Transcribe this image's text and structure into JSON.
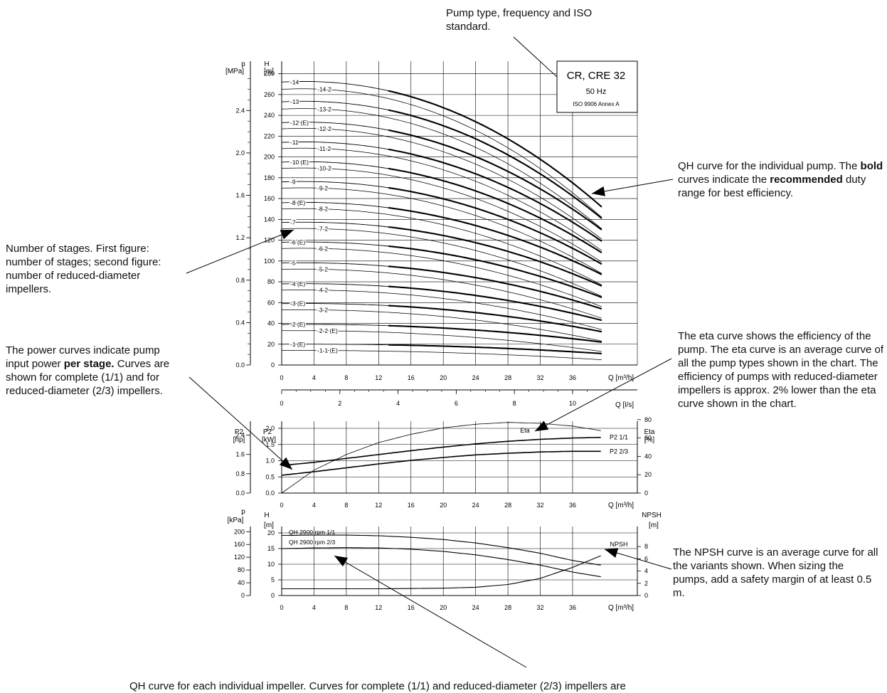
{
  "annotations": {
    "pump_type": "Pump type, frequency and ISO standard.",
    "stages": "Number of stages. First figure: number of stages; second figure: number of reduced-diameter impellers.",
    "power": {
      "a": "The power curves indicate pump input power ",
      "b": "per stage.",
      "c": " Curves are shown for complete (1/1) and for reduced-diameter (2/3) impellers."
    },
    "qh_individual": {
      "a": "QH curve for the individual pump. The ",
      "b": "bold",
      "c": " curves indicate the ",
      "d": "recommended",
      "e": " duty range for best efficiency."
    },
    "eta": "The eta curve shows the efficiency of the pump. The eta curve is an average curve of all the pump types shown in the chart. The efficiency of pumps with reduced-diameter impellers is approx. 2% lower than the eta curve shown in the chart.",
    "npsh": "The NPSH curve is an average curve for all the variants shown. When sizing the pumps, add a safety margin of at least 0.5 m.",
    "qh_impeller": "QH curve for each individual impeller. Curves for complete (1/1) and reduced-diameter (2/3) impellers are"
  },
  "legend_box": {
    "model": "CR, CRE 32",
    "frequency": "50 Hz",
    "standard": "ISO 9906 Annex A"
  },
  "chart_data": [
    {
      "type": "line",
      "name": "QH curves per number of stages",
      "xlabel": "Q [m³/h]",
      "x_ticks": [
        "0",
        "4",
        "8",
        "12",
        "16",
        "20",
        "24",
        "28",
        "32",
        "36"
      ],
      "secondary_xlabel": "Q [l/s]",
      "secondary_x_ticks": [
        "0",
        "2",
        "4",
        "6",
        "8",
        "10"
      ],
      "ylabel": "H [m]",
      "ylabel_top": "H",
      "ylabel_unit": "[m]",
      "y_ticks": [
        "0",
        "20",
        "40",
        "60",
        "80",
        "100",
        "120",
        "140",
        "160",
        "180",
        "200",
        "220",
        "240",
        "260",
        "280"
      ],
      "secondary_ylabel": "p [MPa]",
      "secondary_ylabel_top": "p",
      "secondary_ylabel_unit": "[MPa]",
      "secondary_y_ticks": [
        "0.0",
        "0.4",
        "0.8",
        "1.2",
        "1.6",
        "2.0",
        "2.4"
      ],
      "xlim": [
        0,
        40
      ],
      "ylim": [
        0,
        290
      ],
      "grid": true,
      "curve_labels": [
        "-14",
        "-14-2",
        "-13",
        "-13-2",
        "-12 (E)",
        "-12-2",
        "-11",
        "-11-2",
        "-10 (E)",
        "-10-2",
        "-9",
        "-9-2",
        "-8 (E)",
        "-8-2",
        "-7",
        "-7-2",
        "-6 (E)",
        "-6-2",
        "-5",
        "-5-2",
        "-4 (E)",
        "-4-2",
        "-3 (E)",
        "-3-2",
        "-2 (E)",
        "-2-2 (E)",
        "-1 (E)",
        "-1-1 (E)"
      ],
      "shutoff_head_m": [
        272,
        265,
        253,
        246,
        233,
        227,
        214,
        208,
        195,
        189,
        176,
        170,
        156,
        150,
        137,
        131,
        118,
        112,
        98,
        92,
        78,
        72,
        59,
        53,
        39,
        33,
        20,
        14
      ],
      "head_at_40_m3h_m": [
        152,
        142,
        141,
        131,
        130,
        121,
        119,
        110,
        108,
        99,
        97,
        88,
        87,
        77,
        76,
        66,
        65,
        56,
        54,
        45,
        43,
        34,
        32,
        23,
        22,
        13,
        11,
        5
      ]
    },
    {
      "type": "line",
      "name": "Power and efficiency",
      "xlabel": "Q [m³/h]",
      "x_ticks": [
        "0",
        "4",
        "8",
        "12",
        "16",
        "20",
        "24",
        "28",
        "32",
        "36"
      ],
      "ylabel_top": "P2",
      "ylabel_unit": "[kW]",
      "y_ticks": [
        "0.0",
        "0.5",
        "1.0",
        "1.5",
        "2.0"
      ],
      "secondary_ylabel_top": "P2",
      "secondary_ylabel_unit": "[hp]",
      "secondary_y_ticks": [
        "0.0",
        "0.8",
        "1.6",
        "2.4"
      ],
      "right_ylabel_top": "Eta",
      "right_ylabel_unit": "[%]",
      "right_y_ticks": [
        "0",
        "20",
        "40",
        "60",
        "80"
      ],
      "xlim": [
        0,
        40
      ],
      "ylim": [
        0,
        2.2
      ],
      "grid": true,
      "series": [
        {
          "name": "P2 1/1",
          "x": [
            0,
            4,
            8,
            12,
            16,
            20,
            24,
            28,
            32,
            36,
            39.5
          ],
          "values": [
            0.85,
            0.95,
            1.07,
            1.19,
            1.31,
            1.42,
            1.52,
            1.6,
            1.66,
            1.7,
            1.72
          ]
        },
        {
          "name": "P2 2/3",
          "x": [
            0,
            4,
            8,
            12,
            16,
            20,
            24,
            28,
            32,
            36,
            39.5
          ],
          "values": [
            0.55,
            0.66,
            0.78,
            0.9,
            1.01,
            1.1,
            1.18,
            1.23,
            1.27,
            1.29,
            1.29
          ]
        },
        {
          "name": "Eta",
          "x": [
            0,
            4,
            8,
            12,
            16,
            20,
            24,
            28,
            32,
            36,
            39.5
          ],
          "values": [
            0,
            25,
            42,
            55,
            64,
            71,
            75,
            77,
            76,
            73,
            68
          ]
        }
      ]
    },
    {
      "type": "line",
      "name": "Single impeller QH and NPSH",
      "xlabel": "Q [m³/h]",
      "x_ticks": [
        "0",
        "4",
        "8",
        "12",
        "16",
        "20",
        "24",
        "28",
        "32",
        "36"
      ],
      "ylabel_top": "H",
      "ylabel_unit": "[m]",
      "y_ticks": [
        "0",
        "5",
        "10",
        "15",
        "20"
      ],
      "secondary_ylabel_top": "p",
      "secondary_ylabel_unit": "[kPa]",
      "secondary_y_ticks": [
        "0",
        "40",
        "80",
        "120",
        "160",
        "200"
      ],
      "right_ylabel_top": "NPSH",
      "right_ylabel_unit": "[m]",
      "right_y_ticks": [
        "0",
        "2",
        "4",
        "6",
        "8"
      ],
      "xlim": [
        0,
        40
      ],
      "ylim": [
        0,
        22
      ],
      "grid": true,
      "series": [
        {
          "name": "QH 2900 rpm 1/1",
          "x": [
            0,
            4,
            8,
            12,
            16,
            20,
            24,
            28,
            32,
            36,
            39.5
          ],
          "values": [
            19.2,
            19.3,
            19.3,
            19.1,
            18.6,
            17.9,
            16.8,
            15.3,
            13.5,
            11.2,
            9.7
          ]
        },
        {
          "name": "QH 2900 rpm 2/3",
          "x": [
            0,
            4,
            8,
            12,
            16,
            20,
            24,
            28,
            32,
            36,
            39.5
          ],
          "values": [
            15.0,
            15.2,
            15.3,
            15.2,
            14.8,
            14.1,
            13.0,
            11.5,
            9.7,
            7.5,
            6.0
          ]
        },
        {
          "name": "NPSH",
          "x": [
            0,
            4,
            8,
            12,
            16,
            20,
            24,
            28,
            32,
            36,
            39.5
          ],
          "values": [
            1.1,
            1.1,
            1.1,
            1.1,
            1.15,
            1.2,
            1.35,
            1.8,
            2.8,
            4.6,
            6.5
          ]
        }
      ]
    }
  ]
}
